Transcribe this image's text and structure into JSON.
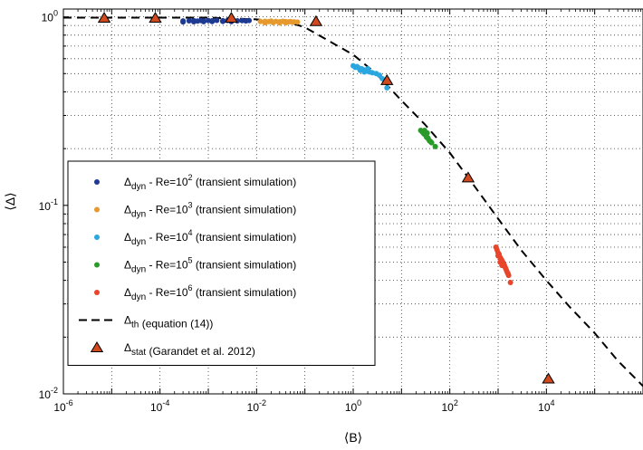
{
  "chart_data": {
    "type": "scatter",
    "title": "",
    "xlabel": "⟨B⟩",
    "ylabel": "⟨Δ⟩",
    "xscale": "log",
    "yscale": "log",
    "xlim": [
      1e-06,
      1000000.0
    ],
    "ylim": [
      0.01,
      1.1
    ],
    "grid": true,
    "legend_position": "bottom-left",
    "x_ticks": [
      {
        "value": 1e-06,
        "base": "10",
        "exp": "-6"
      },
      {
        "value": 0.0001,
        "base": "10",
        "exp": "-4"
      },
      {
        "value": 0.01,
        "base": "10",
        "exp": "-2"
      },
      {
        "value": 1,
        "base": "10",
        "exp": "0"
      },
      {
        "value": 100.0,
        "base": "10",
        "exp": "2"
      },
      {
        "value": 10000.0,
        "base": "10",
        "exp": "4"
      }
    ],
    "y_ticks": [
      {
        "value": 0.01,
        "base": "10",
        "exp": "-2"
      },
      {
        "value": 0.1,
        "base": "10",
        "exp": "-1"
      },
      {
        "value": 1,
        "base": "10",
        "exp": "0"
      }
    ],
    "series": [
      {
        "name_main": "Δ",
        "name_sub": "dyn",
        "name_mid": " - Re=10",
        "name_sup": "2",
        "name_tail": " (transient simulation)",
        "marker": "dot",
        "color": "#1f3a93",
        "points": [
          [
            0.0003,
            0.951
          ],
          [
            0.0004,
            0.953
          ],
          [
            0.0005,
            0.955
          ],
          [
            0.0006,
            0.95
          ],
          [
            0.0007,
            0.956
          ],
          [
            0.0008,
            0.952
          ],
          [
            0.001,
            0.957
          ],
          [
            0.0012,
            0.953
          ],
          [
            0.0015,
            0.958
          ],
          [
            0.002,
            0.954
          ],
          [
            0.0025,
            0.956
          ],
          [
            0.003,
            0.957
          ],
          [
            0.004,
            0.953
          ],
          [
            0.005,
            0.955
          ],
          [
            0.006,
            0.951
          ],
          [
            0.007,
            0.956
          ],
          [
            0.0003,
            0.94
          ],
          [
            0.0005,
            0.942
          ],
          [
            0.0008,
            0.944
          ],
          [
            0.0012,
            0.945
          ],
          [
            0.002,
            0.946
          ],
          [
            0.003,
            0.943
          ]
        ]
      },
      {
        "name_main": "Δ",
        "name_sub": "dyn",
        "name_mid": " - Re=10",
        "name_sup": "3",
        "name_tail": " (transient simulation)",
        "marker": "dot",
        "color": "#e69a2e",
        "points": [
          [
            0.012,
            0.945
          ],
          [
            0.015,
            0.948
          ],
          [
            0.018,
            0.943
          ],
          [
            0.02,
            0.95
          ],
          [
            0.025,
            0.946
          ],
          [
            0.03,
            0.942
          ],
          [
            0.035,
            0.947
          ],
          [
            0.04,
            0.944
          ],
          [
            0.045,
            0.94
          ],
          [
            0.05,
            0.943
          ],
          [
            0.055,
            0.938
          ],
          [
            0.06,
            0.941
          ],
          [
            0.07,
            0.938
          ],
          [
            0.015,
            0.93
          ],
          [
            0.022,
            0.932
          ],
          [
            0.03,
            0.928
          ],
          [
            0.04,
            0.93
          ]
        ]
      },
      {
        "name_main": "Δ",
        "name_sub": "dyn",
        "name_mid": " - Re=10",
        "name_sup": "4",
        "name_tail": " (transient simulation)",
        "marker": "dot",
        "color": "#2aa6e0",
        "points": [
          [
            1.0,
            0.55
          ],
          [
            1.1,
            0.54
          ],
          [
            1.2,
            0.545
          ],
          [
            1.3,
            0.535
          ],
          [
            1.5,
            0.53
          ],
          [
            1.6,
            0.525
          ],
          [
            1.8,
            0.52
          ],
          [
            2.0,
            0.515
          ],
          [
            2.2,
            0.51
          ],
          [
            2.5,
            0.505
          ],
          [
            3.0,
            0.5
          ],
          [
            3.5,
            0.49
          ],
          [
            2.0,
            0.53
          ],
          [
            1.4,
            0.52
          ],
          [
            4.0,
            0.47
          ],
          [
            5.0,
            0.42
          ],
          [
            1.7,
            0.51
          ]
        ]
      },
      {
        "name_main": "Δ",
        "name_sub": "dyn",
        "name_mid": " - Re=10",
        "name_sup": "5",
        "name_tail": " (transient simulation)",
        "marker": "dot",
        "color": "#2a9a2a",
        "points": [
          [
            25,
            0.25
          ],
          [
            27,
            0.245
          ],
          [
            29,
            0.24
          ],
          [
            30,
            0.238
          ],
          [
            32,
            0.235
          ],
          [
            33,
            0.23
          ],
          [
            35,
            0.228
          ],
          [
            36,
            0.225
          ],
          [
            38,
            0.22
          ],
          [
            30,
            0.25
          ],
          [
            34,
            0.242
          ],
          [
            40,
            0.218
          ],
          [
            42,
            0.215
          ],
          [
            50,
            0.205
          ]
        ]
      },
      {
        "name_main": "Δ",
        "name_sub": "dyn",
        "name_mid": " - Re=10",
        "name_sup": "6",
        "name_tail": " (transient simulation)",
        "marker": "dot",
        "color": "#e8452a",
        "points": [
          [
            900,
            0.06
          ],
          [
            950,
            0.058
          ],
          [
            1000,
            0.056
          ],
          [
            1050,
            0.055
          ],
          [
            1100,
            0.053
          ],
          [
            1150,
            0.052
          ],
          [
            1200,
            0.051
          ],
          [
            1250,
            0.05
          ],
          [
            1300,
            0.049
          ],
          [
            1350,
            0.048
          ],
          [
            1400,
            0.047
          ],
          [
            1450,
            0.046
          ],
          [
            1500,
            0.045
          ],
          [
            1550,
            0.044
          ],
          [
            1600,
            0.0435
          ],
          [
            1650,
            0.0425
          ],
          [
            1800,
            0.039
          ],
          [
            1000,
            0.054
          ],
          [
            1100,
            0.05
          ],
          [
            1200,
            0.048
          ]
        ]
      },
      {
        "name_main": "Δ",
        "name_sub": "th",
        "name_mid": "",
        "name_sup": "",
        "name_tail": " (equation (14))",
        "marker": "dashed-line",
        "color": "#000000",
        "points": [
          [
            1e-06,
            0.99
          ],
          [
            0.0001,
            0.99
          ],
          [
            0.001,
            0.99
          ],
          [
            0.01,
            0.97
          ],
          [
            0.05,
            0.93
          ],
          [
            0.1,
            0.88
          ],
          [
            0.3,
            0.75
          ],
          [
            1,
            0.63
          ],
          [
            3,
            0.5
          ],
          [
            10,
            0.36
          ],
          [
            30,
            0.27
          ],
          [
            100,
            0.19
          ],
          [
            300,
            0.13
          ],
          [
            1000,
            0.085
          ],
          [
            3000,
            0.058
          ],
          [
            10000,
            0.04
          ],
          [
            30000,
            0.029
          ],
          [
            100000,
            0.021
          ],
          [
            300000,
            0.015
          ],
          [
            1000000.0,
            0.011
          ]
        ]
      },
      {
        "name_main": "Δ",
        "name_sub": "stat",
        "name_mid": "",
        "name_sup": "",
        "name_tail": " (Garandet et al. 2012)",
        "marker": "triangle",
        "color": "#d14a1e",
        "points": [
          [
            7e-06,
            0.985
          ],
          [
            8e-05,
            0.985
          ],
          [
            0.003,
            0.985
          ],
          [
            0.17,
            0.945
          ],
          [
            5,
            0.46
          ],
          [
            240,
            0.14
          ],
          [
            11000,
            0.012
          ]
        ]
      }
    ]
  }
}
